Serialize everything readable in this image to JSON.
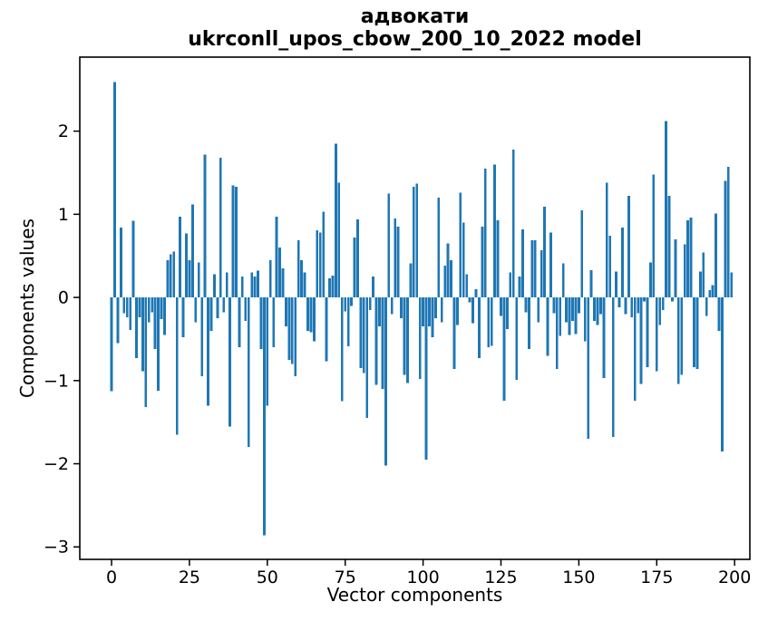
{
  "figure": {
    "title_lines": [
      "адвокати",
      "ukrconll_upos_cbow_200_10_2022 model"
    ]
  },
  "chart_data": {
    "type": "bar",
    "title": "адвокати\nukrconll_upos_cbow_200_10_2022 model",
    "xlabel": "Vector components",
    "ylabel": "Components values",
    "bar_color": "#1f77b4",
    "axis_color": "#000000",
    "x_start": 0,
    "n_bars": 200,
    "xticks": [
      0,
      25,
      50,
      75,
      100,
      125,
      150,
      175,
      200
    ],
    "yticks": [
      2,
      1,
      0,
      -1,
      -2,
      -3
    ],
    "xlim": [
      -10.2,
      204.9
    ],
    "ylim": [
      -3.15,
      2.89
    ],
    "grid": false,
    "values": [
      -1.13,
      2.59,
      -0.55,
      0.84,
      -0.19,
      -0.24,
      -0.39,
      0.92,
      -0.73,
      -0.24,
      -0.89,
      -1.32,
      -0.3,
      -0.18,
      -0.62,
      -1.12,
      -0.26,
      -0.45,
      0.45,
      0.52,
      0.55,
      -1.65,
      0.97,
      -0.48,
      0.77,
      0.45,
      1.12,
      -0.3,
      0.42,
      -0.95,
      1.72,
      -1.3,
      -0.4,
      0.28,
      -0.25,
      1.68,
      -0.18,
      0.3,
      -1.55,
      1.35,
      1.33,
      -0.6,
      0.25,
      -0.28,
      -1.8,
      0.3,
      0.25,
      0.32,
      -0.62,
      -2.86,
      -1.3,
      0.45,
      -0.6,
      0.97,
      0.6,
      0.35,
      -0.35,
      -0.75,
      -0.8,
      -0.95,
      0.69,
      0.45,
      0.3,
      -0.4,
      -0.42,
      -0.53,
      0.81,
      0.78,
      1.03,
      -0.77,
      0.23,
      0.26,
      1.85,
      1.38,
      -1.25,
      -0.17,
      -0.59,
      -0.1,
      0.72,
      0.94,
      -0.85,
      -0.91,
      -1.45,
      -0.15,
      0.25,
      -1.05,
      -0.35,
      -1.1,
      -2.02,
      1.25,
      -0.2,
      0.95,
      0.85,
      -0.25,
      -0.93,
      -1.03,
      0.41,
      1.33,
      1.37,
      -0.98,
      -0.35,
      -1.95,
      -0.35,
      -0.48,
      -0.25,
      1.2,
      -0.3,
      0.38,
      0.65,
      0.45,
      -0.86,
      -0.33,
      1.26,
      0.9,
      0.28,
      -0.06,
      -0.31,
      0.1,
      -0.73,
      0.85,
      1.55,
      -0.6,
      -0.58,
      1.6,
      0.93,
      -0.22,
      -1.24,
      -0.38,
      0.3,
      1.78,
      -0.99,
      0.25,
      0.82,
      -0.18,
      -0.62,
      0.69,
      0.69,
      -0.3,
      0.57,
      1.09,
      -0.7,
      0.78,
      -0.19,
      -0.86,
      -0.46,
      0.41,
      -0.3,
      -0.45,
      -0.28,
      -0.44,
      -0.19,
      1.05,
      -0.53,
      -1.7,
      0.33,
      -0.28,
      -0.33,
      -0.2,
      -0.97,
      1.38,
      0.74,
      -1.68,
      0.31,
      -0.12,
      0.84,
      -0.2,
      1.22,
      -0.24,
      -1.24,
      -0.19,
      -1.04,
      -0.05,
      -0.84,
      0.42,
      1.48,
      -0.89,
      -0.33,
      -0.15,
      2.12,
      1.22,
      -0.05,
      0.7,
      -1.04,
      -0.93,
      0.64,
      0.93,
      0.96,
      -0.84,
      -0.86,
      0.31,
      0.54,
      -0.22,
      0.09,
      0.15,
      1.01,
      -0.4,
      -1.85,
      1.4,
      1.57,
      0.3
    ]
  }
}
